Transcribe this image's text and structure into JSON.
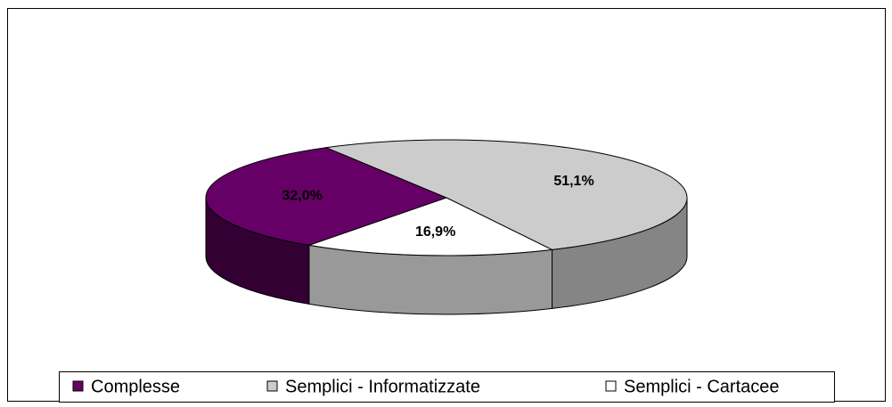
{
  "chart_data": {
    "type": "pie",
    "categories": [
      "Complesse",
      "Semplici - Informatizzate",
      "Semplici - Cartacee"
    ],
    "values": [
      32.0,
      51.1,
      16.9
    ],
    "value_labels": [
      "32,0%",
      "51,1%",
      "16,9%"
    ],
    "colors": [
      "#660066",
      "#cccccc",
      "#ffffff"
    ],
    "legend": "bottom"
  }
}
